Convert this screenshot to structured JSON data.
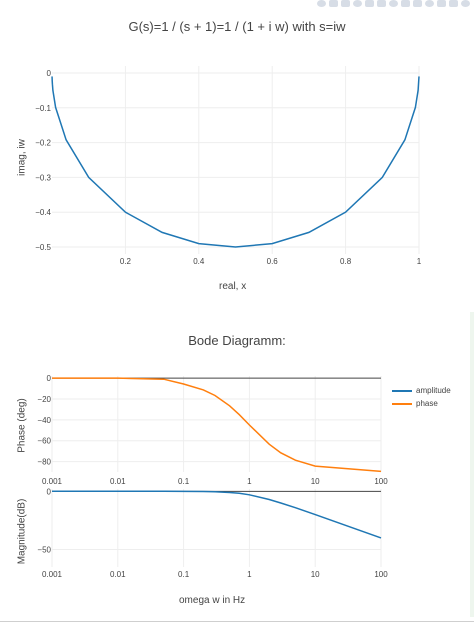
{
  "modebar": {
    "icons": [
      "camera-icon",
      "save-icon",
      "zoom-icon",
      "pan-icon",
      "box-select-icon",
      "lasso-icon",
      "zoom-in-icon",
      "zoom-out-icon",
      "autoscale-icon",
      "reset-icon",
      "spike-icon",
      "hover-closest-icon",
      "hover-compare-icon"
    ]
  },
  "chart_data": [
    {
      "type": "line",
      "title": "G(s)=1 / (s + 1)=1 / (1 + i w) with s=iw",
      "xlabel": "real, x",
      "ylabel": "imag, iw",
      "xlim": [
        0,
        1
      ],
      "ylim": [
        -0.52,
        0.02
      ],
      "x_ticks": [
        "0.2",
        "0.4",
        "0.6",
        "0.8",
        "1"
      ],
      "y_ticks": [
        "0",
        "−0.1",
        "−0.2",
        "−0.3",
        "−0.4",
        "−0.5"
      ],
      "grid": true,
      "series": [
        {
          "color": "#1f77b4",
          "x": [
            0.0001,
            0.0002,
            0.0005,
            0.001,
            0.0025,
            0.0099,
            0.0385,
            0.1,
            0.2,
            0.3,
            0.4,
            0.5,
            0.6,
            0.7,
            0.8,
            0.9,
            0.9615,
            0.9901,
            0.9975,
            0.9999
          ],
          "y": [
            -0.01,
            -0.014,
            -0.022,
            -0.032,
            -0.05,
            -0.099,
            -0.192,
            -0.3,
            -0.4,
            -0.458,
            -0.49,
            -0.5,
            -0.49,
            -0.458,
            -0.4,
            -0.3,
            -0.192,
            -0.099,
            -0.05,
            -0.01
          ]
        }
      ]
    },
    {
      "type": "line",
      "title": "Bode Diagramm:",
      "xlabel": "omega w in Hz",
      "x_scale": "log",
      "xlim": [
        0.001,
        100
      ],
      "x_ticks": [
        "0.001",
        "0.01",
        "0.1",
        "1",
        "10",
        "100"
      ],
      "x": [
        0.001,
        0.01,
        0.05,
        0.1,
        0.2,
        0.3,
        0.5,
        0.7,
        1,
        2,
        3,
        5,
        10,
        100
      ],
      "legend": {
        "position": "right",
        "entries": [
          "amplitude",
          "phase"
        ]
      },
      "subplots": [
        {
          "ylabel": "Phase (deg)",
          "ylim": [
            -90,
            2
          ],
          "y_ticks": [
            "0",
            "−20",
            "−40",
            "−60",
            "−80"
          ],
          "series": [
            {
              "name": "phase",
              "color": "#ff7f0e",
              "values": [
                0,
                0,
                -1.1,
                -5.7,
                -11.3,
                -16.7,
                -26.6,
                -35,
                -45,
                -63.4,
                -71.6,
                -78.7,
                -84.3,
                -89.4
              ]
            }
          ]
        },
        {
          "ylabel": "Magnitude(dB)",
          "ylim": [
            -65,
            2
          ],
          "y_ticks": [
            "0",
            "−50"
          ],
          "series": [
            {
              "name": "amplitude",
              "color": "#1f77b4",
              "values": [
                0,
                0,
                -0.01,
                -0.04,
                -0.17,
                -0.37,
                -0.97,
                -1.7,
                -3.0,
                -7.0,
                -10.0,
                -14.1,
                -20.0,
                -40.0
              ]
            }
          ]
        }
      ]
    }
  ]
}
